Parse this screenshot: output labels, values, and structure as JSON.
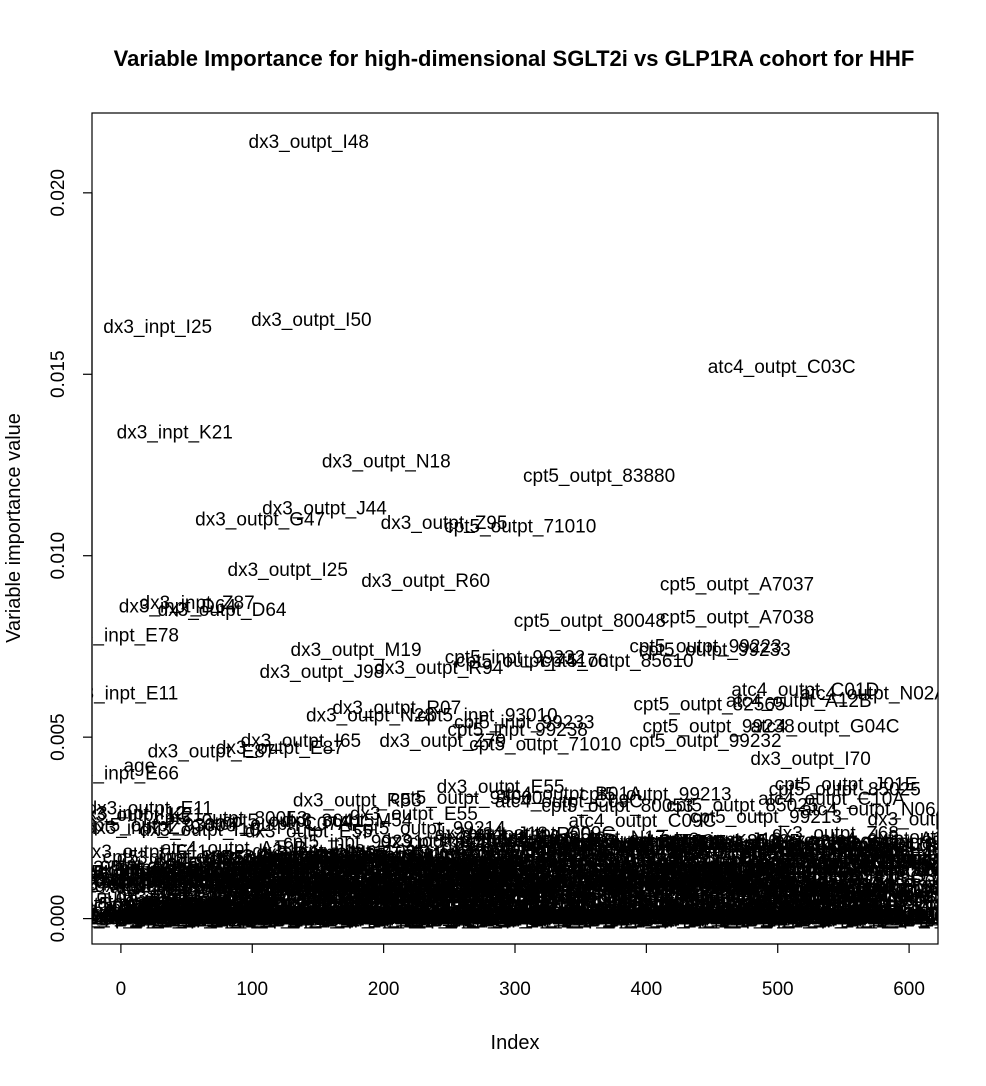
{
  "chart_data": {
    "type": "scatter",
    "title": "Variable Importance for high-dimensional SGLT2i vs GLP1RA cohort for HHF",
    "xlabel": "Index",
    "ylabel": "Variable importance value",
    "xlim": [
      -22,
      622
    ],
    "ylim": [
      -0.0007,
      0.0222
    ],
    "x_ticks": [
      0,
      100,
      200,
      300,
      400,
      500,
      600
    ],
    "y_ticks": [
      0.0,
      0.005,
      0.01,
      0.015,
      0.02
    ],
    "y_tick_labels": [
      "0.000",
      "0.005",
      "0.010",
      "0.015",
      "0.020"
    ],
    "grid": false,
    "legend": "none",
    "points": [
      {
        "x": 143,
        "y": 0.0214,
        "label": "dx3_outpt_I48"
      },
      {
        "x": 145,
        "y": 0.0165,
        "label": "dx3_outpt_I50"
      },
      {
        "x": 28,
        "y": 0.0163,
        "label": "dx3_inpt_I25"
      },
      {
        "x": 41,
        "y": 0.0134,
        "label": "dx3_inpt_K21"
      },
      {
        "x": 503,
        "y": 0.0152,
        "label": "atc4_outpt_C03C"
      },
      {
        "x": 202,
        "y": 0.0126,
        "label": "dx3_outpt_N18"
      },
      {
        "x": 364,
        "y": 0.0122,
        "label": "cpt5_outpt_83880"
      },
      {
        "x": 155,
        "y": 0.0113,
        "label": "dx3_outpt_J44"
      },
      {
        "x": 106,
        "y": 0.011,
        "label": "dx3_outpt_G47"
      },
      {
        "x": 246,
        "y": 0.0109,
        "label": "dx3_outpt_Z95"
      },
      {
        "x": 304,
        "y": 0.0108,
        "label": "cpt5_outpt_71010"
      },
      {
        "x": 127,
        "y": 0.0096,
        "label": "dx3_outpt_I25"
      },
      {
        "x": 232,
        "y": 0.0093,
        "label": "dx3_outpt_R60"
      },
      {
        "x": 469,
        "y": 0.0092,
        "label": "cpt5_outpt_A7037"
      },
      {
        "x": 58,
        "y": 0.0087,
        "label": "dx3_inpt_Z87"
      },
      {
        "x": 43,
        "y": 0.0086,
        "label": "dx3_inpt_D64"
      },
      {
        "x": 77,
        "y": 0.0085,
        "label": "dx3_outpt_D64"
      },
      {
        "x": 469,
        "y": 0.0083,
        "label": "cpt5_outpt_A7038"
      },
      {
        "x": 357,
        "y": 0.0082,
        "label": "cpt5_outpt_80048"
      },
      {
        "x": 0,
        "y": 0.0078,
        "label": "dx3_inpt_E78"
      },
      {
        "x": 445,
        "y": 0.0075,
        "label": "cpt5_outpt_99223"
      },
      {
        "x": 452,
        "y": 0.0074,
        "label": "cpt5_outpt_99233"
      },
      {
        "x": 179,
        "y": 0.0074,
        "label": "dx3_outpt_M19"
      },
      {
        "x": 300,
        "y": 0.0072,
        "label": "cpt5_inpt_99232"
      },
      {
        "x": 313,
        "y": 0.0071,
        "label": "cpt5_outpt_74176"
      },
      {
        "x": 378,
        "y": 0.0071,
        "label": "cpt5_outpt_85610"
      },
      {
        "x": 153,
        "y": 0.0068,
        "label": "dx3_outpt_J98"
      },
      {
        "x": 242,
        "y": 0.0069,
        "label": "dx3_outpt_R94"
      },
      {
        "x": 0,
        "y": 0.0062,
        "label": "dx3_inpt_E11"
      },
      {
        "x": 521,
        "y": 0.0063,
        "label": "atc4_outpt_C01D"
      },
      {
        "x": 573,
        "y": 0.0062,
        "label": "atc4_outpt_N02A"
      },
      {
        "x": 448,
        "y": 0.0059,
        "label": "cpt5_outpt_82565"
      },
      {
        "x": 516,
        "y": 0.006,
        "label": "atc4_outpt_A12B"
      },
      {
        "x": 210,
        "y": 0.0058,
        "label": "dx3_outpt_R07"
      },
      {
        "x": 190,
        "y": 0.0056,
        "label": "dx3_outpt_N28"
      },
      {
        "x": 279,
        "y": 0.0056,
        "label": "cpt5_inpt_93010"
      },
      {
        "x": 307,
        "y": 0.0054,
        "label": "cpt5_inpt_99233"
      },
      {
        "x": 302,
        "y": 0.0052,
        "label": "cpt5_inpt_99238"
      },
      {
        "x": 455,
        "y": 0.0053,
        "label": "cpt5_outpt_99238"
      },
      {
        "x": 536,
        "y": 0.0053,
        "label": "atc4_outpt_G04C"
      },
      {
        "x": 137,
        "y": 0.0049,
        "label": "dx3_outpt_I65"
      },
      {
        "x": 245,
        "y": 0.0049,
        "label": "dx3_outpt_Z79"
      },
      {
        "x": 323,
        "y": 0.0048,
        "label": "cpt5_outpt_71010"
      },
      {
        "x": 445,
        "y": 0.0049,
        "label": "cpt5_outpt_99232"
      },
      {
        "x": 14,
        "y": 0.0042,
        "label": "age"
      },
      {
        "x": 0,
        "y": 0.004,
        "label": "dx3_inpt_E66"
      },
      {
        "x": 69,
        "y": 0.0046,
        "label": "dx3_outpt_E87"
      },
      {
        "x": 121,
        "y": 0.0047,
        "label": "dx3_outpt_E87"
      },
      {
        "x": 525,
        "y": 0.0044,
        "label": "dx3_outpt_I70"
      },
      {
        "x": 552,
        "y": 0.0037,
        "label": "cpt5_outpt_J01E"
      },
      {
        "x": 8,
        "y": 0.0029,
        "label": "dx3_inpt_I12"
      },
      {
        "x": 17,
        "y": 0.0025,
        "label": "dx3_inpt_Z79"
      },
      {
        "x": 5,
        "y": 0.0014,
        "label": "dx3_inpt_I10"
      },
      {
        "x": 574,
        "y": 0.003,
        "label": "atc4_outpt_N06A"
      },
      {
        "x": 541,
        "y": 0.0033,
        "label": "atc4_outpt_C10A"
      }
    ]
  },
  "clutter": {
    "labels": [
      "dx3_outpt_I10",
      "dx3_inpt_N17",
      "dx3_outpt_E11",
      "cpt5_outpt_99214",
      "dx3_outpt_Z00",
      "cpt5_outpt_80053",
      "atc4_outpt_C07A",
      "dx3_inpt_I48",
      "cpt5_outpt_93000",
      "dx3_outpt_R00",
      "atc4_outpt_B01A",
      "dx3_outpt_K21",
      "cpt5_outpt_85025",
      "dx3_outpt_M54",
      "atc4_outpt_A10B",
      "dx3_outpt_E78",
      "cpt5_inpt_99291",
      "dx3_outpt_R06",
      "atc4_outpt_C09C",
      "dx3_outpt_I10",
      "cpt5_outpt_36415",
      "dx3_inpt_J18",
      "dx3_outpt_Z68",
      "atc4_outpt_C08C",
      "cpt5_outpt_83036",
      "dx3_outpt_M25",
      "dx3_outpt_R53",
      "cpt5_outpt_99213",
      "atc4_outpt_H03A",
      "dx3_outpt_E55"
    ],
    "seed": 7,
    "count": 460
  }
}
